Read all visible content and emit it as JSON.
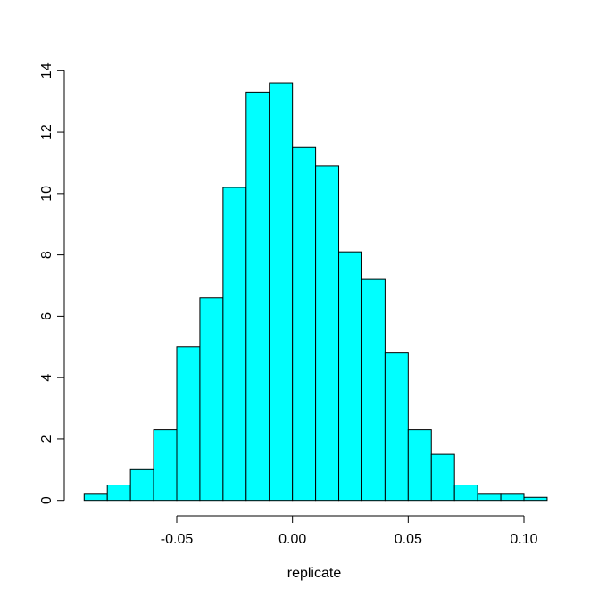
{
  "figure": {
    "background": "#ffffff"
  },
  "chart_data": {
    "type": "bar",
    "subtype": "histogram",
    "title": "",
    "xlabel": "replicate",
    "ylabel": "",
    "bin_start": -0.09,
    "bin_width": 0.01,
    "bin_edges": [
      -0.09,
      -0.08,
      -0.07,
      -0.06,
      -0.05,
      -0.04,
      -0.03,
      -0.02,
      -0.01,
      0.0,
      0.01,
      0.02,
      0.03,
      0.04,
      0.05,
      0.06,
      0.07,
      0.08,
      0.09,
      0.1,
      0.11
    ],
    "densities": [
      0.2,
      0.5,
      1.0,
      2.3,
      5.0,
      6.6,
      10.2,
      13.3,
      13.6,
      11.5,
      10.9,
      8.1,
      7.2,
      4.8,
      2.3,
      1.5,
      0.5,
      0.2,
      0.2,
      0.1
    ],
    "x_tick_values": [
      -0.05,
      0.0,
      0.05,
      0.1
    ],
    "x_tick_labels": [
      "-0.05",
      "0.00",
      "0.05",
      "0.10"
    ],
    "y_tick_values": [
      0,
      2,
      4,
      6,
      8,
      10,
      12,
      14
    ],
    "y_tick_labels": [
      "0",
      "2",
      "4",
      "6",
      "8",
      "10",
      "12",
      "14"
    ],
    "xlim": [
      -0.05,
      0.1
    ],
    "ylim": [
      0,
      14
    ],
    "grid": "off",
    "legend": "none",
    "bar_fill": "#00ffff",
    "bar_stroke": "#000000",
    "axis_color": "#000000",
    "text_color": "#000000"
  }
}
